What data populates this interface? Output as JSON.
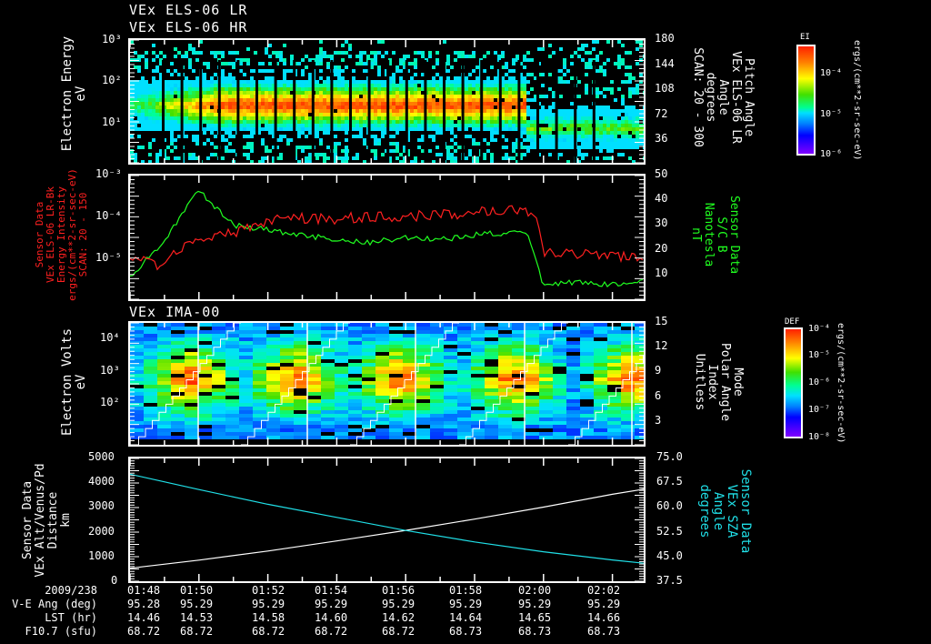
{
  "panels": {
    "p1": {
      "titles": [
        "VEx ELS-06 LR",
        "VEx ELS-06 HR"
      ],
      "ylabel": [
        "Electron Energy",
        "eV"
      ],
      "yticks": [
        "10³",
        "10²",
        "10¹"
      ],
      "yticks_right": [
        "180",
        "144",
        "108",
        "72",
        "36"
      ],
      "right_label": [
        "Pitch Angle",
        "VEx ELS-06 LR",
        "Angle",
        "degrees",
        "SCAN: 20 - 300"
      ],
      "colorbar": {
        "title": "EI",
        "ticks": [
          "10⁻⁴",
          "10⁻⁵",
          "10⁻⁶"
        ],
        "unit": "ergs/(cm**2-sr-sec-eV)"
      }
    },
    "p2": {
      "yticks": [
        "10⁻³",
        "10⁻⁴",
        "10⁻⁵"
      ],
      "yticks_right": [
        "50",
        "40",
        "30",
        "20",
        "10"
      ],
      "left_label": [
        "Sensor Data",
        "VEx ELS-06 LR-Bk",
        "Energy Intensity",
        "ergs/(cm**2-sr-sec-eV)",
        "SCAN: 20 - 150"
      ],
      "right_label": [
        "Sensor Data",
        "S/C B",
        "Nanotesla",
        "nT"
      ],
      "left_color": "#ff2020",
      "right_color": "#20ff20"
    },
    "p3": {
      "title": "VEx IMA-00",
      "ylabel": [
        "Electron Volts",
        "eV"
      ],
      "yticks": [
        "10⁴",
        "10³",
        "10²"
      ],
      "yticks_right": [
        "15",
        "12",
        "9",
        "6",
        "3"
      ],
      "right_label": [
        "Mode",
        "Polar Angle",
        "Index",
        "Unitless"
      ],
      "colorbar": {
        "title": "DEF",
        "ticks": [
          "10⁻⁴",
          "10⁻⁵",
          "10⁻⁶",
          "10⁻⁷",
          "10⁻⁸"
        ],
        "unit": "ergs/(cm**2-sr-sec-eV)"
      }
    },
    "p4": {
      "ylabel": [
        "Sensor Data",
        "VEx Alt/Venus/Pd",
        "Distance",
        "km"
      ],
      "yticks": [
        "5000",
        "4000",
        "3000",
        "2000",
        "1000",
        "0"
      ],
      "yticks_right": [
        "75.0",
        "67.5",
        "60.0",
        "52.5",
        "45.0",
        "37.5"
      ],
      "right_label": [
        "Sensor Data",
        "VEx SZA",
        "Angle",
        "degrees"
      ],
      "right_color": "#20e0e8"
    }
  },
  "footer": {
    "labels": [
      "2009/238",
      "V-E Ang (deg)",
      "LST (hr)",
      "F10.7 (sfu)"
    ],
    "columns": [
      {
        "time": "01:48",
        "ve": "95.28",
        "lst": "14.46",
        "f107": "68.72"
      },
      {
        "time": "01:50",
        "ve": "95.29",
        "lst": "14.53",
        "f107": "68.72"
      },
      {
        "time": "01:52",
        "ve": "95.29",
        "lst": "14.58",
        "f107": "68.72"
      },
      {
        "time": "01:54",
        "ve": "95.29",
        "lst": "14.60",
        "f107": "68.72"
      },
      {
        "time": "01:56",
        "ve": "95.29",
        "lst": "14.62",
        "f107": "68.72"
      },
      {
        "time": "01:58",
        "ve": "95.29",
        "lst": "14.64",
        "f107": "68.73"
      },
      {
        "time": "02:00",
        "ve": "95.29",
        "lst": "14.65",
        "f107": "68.73"
      },
      {
        "time": "02:02",
        "ve": "95.29",
        "lst": "14.66",
        "f107": "68.73"
      }
    ]
  },
  "chart_data": [
    {
      "type": "heatmap",
      "title": "VEx ELS-06 LR / VEx ELS-06 HR",
      "xlabel": "UT (2009/238)",
      "ylabel": "Electron Energy (eV)",
      "yscale": "log",
      "ylim": [
        1,
        1000
      ],
      "y2label": "Pitch Angle (degrees), SCAN: 20 - 300",
      "y2lim": [
        0,
        180
      ],
      "x": [
        "01:48",
        "01:50",
        "01:52",
        "01:54",
        "01:56",
        "01:58",
        "02:00",
        "02:02"
      ],
      "colorbar": {
        "label": "EI ergs/(cm**2-sr-sec-eV)",
        "ticks": [
          "1e-4",
          "1e-5",
          "1e-6"
        ]
      },
      "description": "Intense band (red/orange) centered ~30-60 eV from ~01:49 to ~01:59:30, weaker green band ~10-30 eV after 01:59:30; scattered cyan counts elsewhere"
    },
    {
      "type": "line",
      "title": "",
      "x": [
        "01:48",
        "01:49",
        "01:50",
        "01:51",
        "01:52",
        "01:53",
        "01:54",
        "01:55",
        "01:56",
        "01:57",
        "01:58",
        "01:59",
        "01:59.5",
        "02:00",
        "02:01",
        "02:02",
        "02:03"
      ],
      "series": [
        {
          "name": "VEx ELS-06 LR-Bk Energy Intensity (ergs/(cm**2-sr-sec-eV)), SCAN: 20-150",
          "axis": "left",
          "color": "#ff2020",
          "values": [
            1e-05,
            6e-06,
            3e-05,
            4e-05,
            8e-05,
            9e-05,
            9e-05,
            0.0001,
            0.0001,
            0.00011,
            0.00013,
            0.00015,
            0.00015,
            1.5e-05,
            1.2e-05,
            1.1e-05,
            9e-06
          ]
        },
        {
          "name": "S/C B (nT)",
          "axis": "right",
          "color": "#20ff20",
          "values": [
            9,
            24,
            44,
            30,
            28,
            26,
            24,
            23,
            25,
            24,
            26,
            27,
            27,
            6,
            7,
            6,
            7
          ]
        }
      ],
      "ylabel": "Energy Intensity",
      "yscale": "log",
      "ylim": [
        1e-06,
        0.001
      ],
      "y2label": "S/C B Nanotesla nT",
      "y2lim": [
        0,
        50
      ]
    },
    {
      "type": "heatmap",
      "title": "VEx IMA-00",
      "ylabel": "Electron Volts (eV)",
      "yscale": "log",
      "ylim": [
        10,
        40000
      ],
      "y2label": "Mode / Polar Angle Index (Unitless)",
      "y2lim": [
        0,
        15
      ],
      "x": [
        "01:48",
        "01:50",
        "01:52",
        "01:54",
        "01:56",
        "01:58",
        "02:00",
        "02:02"
      ],
      "colorbar": {
        "label": "DEF ergs/(cm**2-sr-sec-eV)",
        "ticks": [
          "1e-4",
          "1e-5",
          "1e-6",
          "1e-7",
          "1e-8"
        ]
      },
      "description": "Peaks (red/orange) near 300-1000 eV around 01:49-01:50, 01:53, 01:55.5, 01:58.5, 02:01.5; white staircase polar-angle index rising 1-15 per ~3.2 min scan"
    },
    {
      "type": "line",
      "x": [
        "01:48",
        "01:50",
        "01:52",
        "01:54",
        "01:56",
        "01:58",
        "02:00",
        "02:02",
        "02:03"
      ],
      "series": [
        {
          "name": "VEx Alt/Venus/Pd Distance (km)",
          "axis": "left",
          "color": "#ffffff",
          "values": [
            530,
            860,
            1230,
            1640,
            2070,
            2530,
            3020,
            3540,
            3750
          ]
        },
        {
          "name": "VEx SZA Angle (degrees)",
          "axis": "right",
          "color": "#20e0e8",
          "values": [
            70.2,
            65.5,
            61.0,
            57.0,
            53.0,
            49.5,
            46.5,
            44.0,
            43.0
          ]
        }
      ],
      "ylabel": "Distance km",
      "ylim": [
        0,
        5000
      ],
      "y2label": "Angle degrees",
      "y2lim": [
        37.5,
        75.0
      ]
    }
  ]
}
